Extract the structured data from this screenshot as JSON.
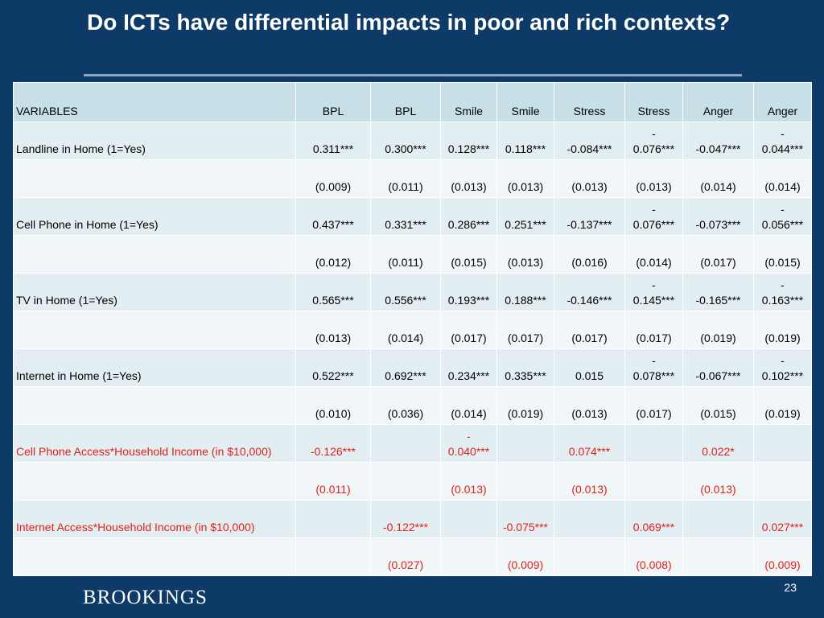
{
  "slide": {
    "title": "Do ICTs have differential impacts in poor and rich contexts?",
    "page_number": "23",
    "logo_text": "BROOKINGS"
  },
  "table": {
    "header": [
      "VARIABLES",
      "BPL",
      "BPL",
      "Smile",
      "Smile",
      "Stress",
      "Stress",
      "Anger",
      "Anger"
    ],
    "rows": [
      {
        "label": "Landline in Home (1=Yes)",
        "values": [
          "0.311***",
          "0.300***",
          "0.128***",
          "0.118***",
          "-0.084***",
          "-\n0.076***",
          "-0.047***",
          "-\n0.044***"
        ]
      },
      {
        "label": "",
        "values": [
          "(0.009)",
          "(0.011)",
          "(0.013)",
          "(0.013)",
          "(0.013)",
          "(0.013)",
          "(0.014)",
          "(0.014)"
        ]
      },
      {
        "label": "Cell Phone in Home (1=Yes)",
        "values": [
          "0.437***",
          "0.331***",
          "0.286***",
          "0.251***",
          "-0.137***",
          "-\n0.076***",
          "-0.073***",
          "-\n0.056***"
        ]
      },
      {
        "label": "",
        "values": [
          "(0.012)",
          "(0.011)",
          "(0.015)",
          "(0.013)",
          "(0.016)",
          "(0.014)",
          "(0.017)",
          "(0.015)"
        ]
      },
      {
        "label": "TV in Home (1=Yes)",
        "values": [
          "0.565***",
          "0.556***",
          "0.193***",
          "0.188***",
          "-0.146***",
          "-\n0.145***",
          "-0.165***",
          "-\n0.163***"
        ]
      },
      {
        "label": "",
        "values": [
          "(0.013)",
          "(0.014)",
          "(0.017)",
          "(0.017)",
          "(0.017)",
          "(0.017)",
          "(0.019)",
          "(0.019)"
        ]
      },
      {
        "label": "Internet in Home (1=Yes)",
        "values": [
          "0.522***",
          "0.692***",
          "0.234***",
          "0.335***",
          "0.015",
          "-\n0.078***",
          "-0.067***",
          "-\n0.102***"
        ]
      },
      {
        "label": "",
        "values": [
          "(0.010)",
          "(0.036)",
          "(0.014)",
          "(0.019)",
          "(0.013)",
          "(0.017)",
          "(0.015)",
          "(0.019)"
        ]
      },
      {
        "label": "Cell Phone Access*Household Income (in $10,000)",
        "values": [
          "-0.126***",
          "",
          "-\n0.040***",
          "",
          "0.074***",
          "",
          "0.022*",
          ""
        ]
      },
      {
        "label": "",
        "values": [
          "(0.011)",
          "",
          "(0.013)",
          "",
          "(0.013)",
          "",
          "(0.013)",
          ""
        ]
      },
      {
        "label": "Internet Access*Household Income (in $10,000)",
        "values": [
          "",
          "-0.122***",
          "",
          "-0.075***",
          "",
          "0.069***",
          "",
          "0.027***"
        ]
      },
      {
        "label": "",
        "values": [
          "",
          "(0.027)",
          "",
          "(0.009)",
          "",
          "(0.008)",
          "",
          "(0.009)"
        ]
      }
    ]
  },
  "colors": {
    "background": "#0e3a68",
    "header_fill": "#c7dfe6",
    "coef_row_fill": "#e2eef2",
    "se_row_fill": "#f1f6f8",
    "highlight_text": "#e0201a"
  }
}
